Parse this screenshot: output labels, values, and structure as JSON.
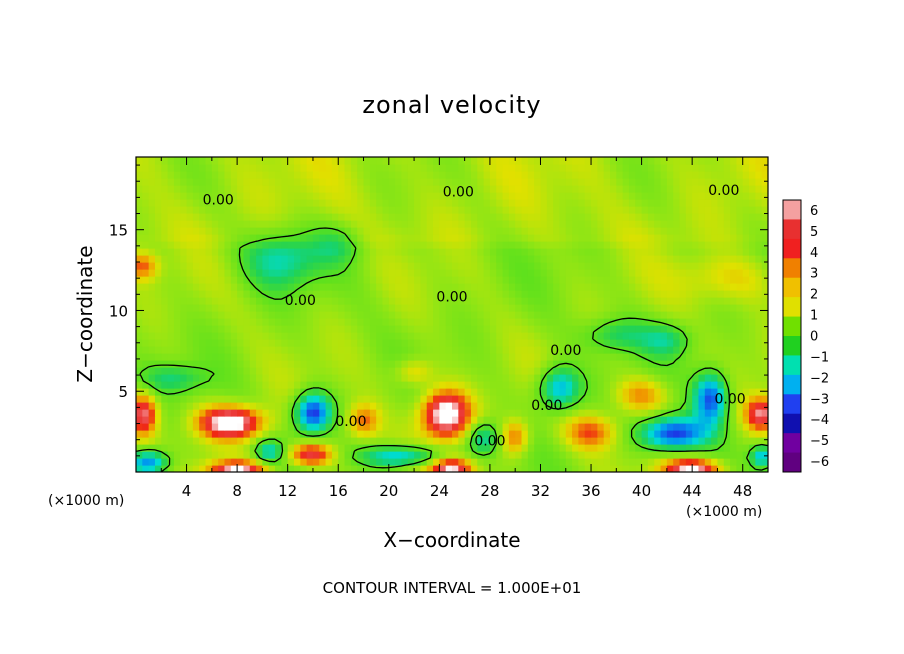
{
  "chart_data": {
    "type": "heatmap",
    "title": "zonal velocity",
    "xlabel": "X−coordinate",
    "ylabel": "Z−coordinate",
    "x_unit_label": "(×1000 m)",
    "y_unit_label": "(×1000 m)",
    "footer": "CONTOUR INTERVAL = 1.000E+01",
    "xlim": [
      0,
      50
    ],
    "ylim": [
      0,
      19.5
    ],
    "x_ticks": [
      "4",
      "8",
      "12",
      "16",
      "20",
      "24",
      "28",
      "32",
      "36",
      "40",
      "44",
      "48"
    ],
    "x_tick_values": [
      4,
      8,
      12,
      16,
      20,
      24,
      28,
      32,
      36,
      40,
      44,
      48
    ],
    "y_ticks": [
      "5",
      "10",
      "15"
    ],
    "y_tick_values": [
      5,
      10,
      15
    ],
    "colorbar": {
      "labels": [
        "6",
        "5",
        "4",
        "3",
        "2",
        "1",
        "0",
        "−1",
        "−2",
        "−3",
        "−4",
        "−5",
        "−6"
      ],
      "values": [
        6,
        5,
        4,
        3,
        2,
        1,
        0,
        -1,
        -2,
        -3,
        -4,
        -5,
        -6
      ],
      "colors": [
        "#f4a0a0",
        "#e83030",
        "#f02020",
        "#f08000",
        "#f0c000",
        "#e0e000",
        "#70e000",
        "#20d020",
        "#00e0b0",
        "#00b0f0",
        "#2040f0",
        "#1010b0",
        "#7000a0",
        "#600080"
      ]
    },
    "contour_labels": [
      {
        "text": "0.00",
        "x": 6.5,
        "z": 16.8
      },
      {
        "text": "0.00",
        "x": 25.5,
        "z": 17.3
      },
      {
        "text": "0.00",
        "x": 46.5,
        "z": 17.4
      },
      {
        "text": "0.00",
        "x": 13,
        "z": 10.6
      },
      {
        "text": "0.00",
        "x": 25,
        "z": 10.8
      },
      {
        "text": "0.00",
        "x": 34,
        "z": 7.5
      },
      {
        "text": "0.00",
        "x": 17,
        "z": 3.1
      },
      {
        "text": "0.00",
        "x": 28,
        "z": 1.9
      },
      {
        "text": "0.00",
        "x": 32.5,
        "z": 4.1
      },
      {
        "text": "0.00",
        "x": 47,
        "z": 4.5
      }
    ],
    "features": [
      {
        "sign": "pos",
        "x": 7.5,
        "z": 3.1,
        "amp": 6.5,
        "sx": 2.4,
        "sz": 0.9
      },
      {
        "sign": "pos",
        "x": 24.5,
        "z": 3.6,
        "amp": 6.5,
        "sx": 1.8,
        "sz": 1.4
      },
      {
        "sign": "pos",
        "x": 0.6,
        "z": 3.6,
        "amp": 5,
        "sx": 1.0,
        "sz": 1.2
      },
      {
        "sign": "pos",
        "x": 13.8,
        "z": 1.1,
        "amp": 5,
        "sx": 1.6,
        "sz": 0.6
      },
      {
        "sign": "pos",
        "x": 49.5,
        "z": 3.6,
        "amp": 5,
        "sx": 1.2,
        "sz": 1.0
      },
      {
        "sign": "pos",
        "x": 8,
        "z": 0.1,
        "amp": 6,
        "sx": 2.2,
        "sz": 0.5
      },
      {
        "sign": "pos",
        "x": 25,
        "z": 0.2,
        "amp": 6,
        "sx": 1.6,
        "sz": 0.6
      },
      {
        "sign": "pos",
        "x": 44,
        "z": 0.2,
        "amp": 6,
        "sx": 2.2,
        "sz": 0.5
      },
      {
        "sign": "pos",
        "x": 18,
        "z": 3.2,
        "amp": 3,
        "sx": 1.2,
        "sz": 1.0
      },
      {
        "sign": "pos",
        "x": 36,
        "z": 2.5,
        "amp": 3,
        "sx": 2.0,
        "sz": 1.0
      },
      {
        "sign": "pos",
        "x": 40,
        "z": 4.8,
        "amp": 2.5,
        "sx": 2.0,
        "sz": 1.0
      },
      {
        "sign": "pos",
        "x": 30,
        "z": 2.2,
        "amp": 3,
        "sx": 1.0,
        "sz": 1.0
      },
      {
        "sign": "pos",
        "x": 22,
        "z": 6.2,
        "amp": 2,
        "sx": 1.5,
        "sz": 0.8
      },
      {
        "sign": "pos",
        "x": 0.5,
        "z": 12.8,
        "amp": 3,
        "sx": 1.2,
        "sz": 0.8
      },
      {
        "sign": "pos",
        "x": 47,
        "z": 12,
        "amp": 1.5,
        "sx": 4,
        "sz": 1.5
      },
      {
        "sign": "neg",
        "x": 14,
        "z": 3.7,
        "amp": 5.5,
        "sx": 1.4,
        "sz": 1.2
      },
      {
        "sign": "neg",
        "x": 42.5,
        "z": 2.4,
        "amp": 5.5,
        "sx": 2.6,
        "sz": 1.0
      },
      {
        "sign": "neg",
        "x": 45.5,
        "z": 4.6,
        "amp": 5,
        "sx": 1.3,
        "sz": 1.6
      },
      {
        "sign": "neg",
        "x": 1,
        "z": 0.6,
        "amp": 5,
        "sx": 1.5,
        "sz": 0.7
      },
      {
        "sign": "neg",
        "x": 21,
        "z": 1.0,
        "amp": 4,
        "sx": 3.0,
        "sz": 0.6
      },
      {
        "sign": "neg",
        "x": 27.5,
        "z": 2.1,
        "amp": 3,
        "sx": 1.2,
        "sz": 1.0
      },
      {
        "sign": "neg",
        "x": 33.5,
        "z": 5.2,
        "amp": 4,
        "sx": 1.6,
        "sz": 1.3
      },
      {
        "sign": "neg",
        "x": 10.5,
        "z": 1.3,
        "amp": 3,
        "sx": 1.0,
        "sz": 0.6
      },
      {
        "sign": "neg",
        "x": 49.5,
        "z": 1.0,
        "amp": 4,
        "sx": 0.8,
        "sz": 0.6
      },
      {
        "sign": "neg",
        "x": 11.5,
        "z": 13.2,
        "amp": 2.5,
        "sx": 3.0,
        "sz": 1.8
      },
      {
        "sign": "neg",
        "x": 16,
        "z": 14.2,
        "amp": 1.5,
        "sx": 2.0,
        "sz": 1.2
      },
      {
        "sign": "neg",
        "x": 38,
        "z": 8.5,
        "amp": 2,
        "sx": 2.5,
        "sz": 1.0
      },
      {
        "sign": "neg",
        "x": 42,
        "z": 8.2,
        "amp": 2,
        "sx": 2.0,
        "sz": 1.0
      },
      {
        "sign": "neg",
        "x": 3,
        "z": 5.8,
        "amp": 2,
        "sx": 2.5,
        "sz": 0.8
      }
    ]
  }
}
